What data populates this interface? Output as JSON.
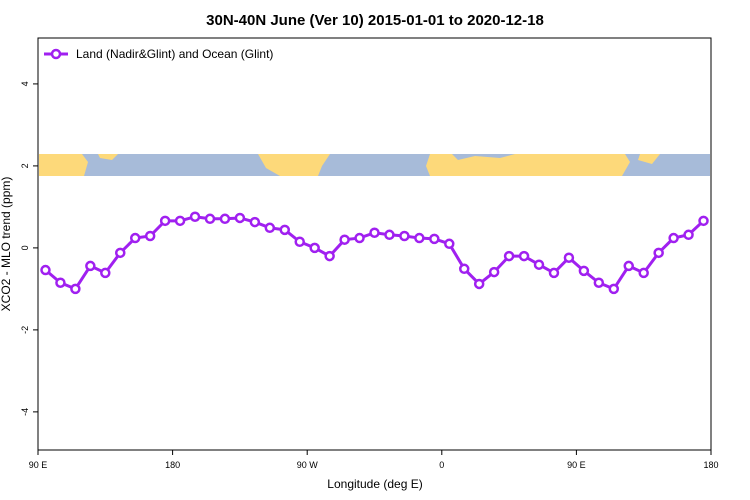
{
  "chart_data": {
    "type": "line",
    "title": "30N-40N June (Ver 10)   2015-01-01 to 2020-12-18",
    "x_label": "Longitude (deg E)",
    "y_label": "XCO2 - MLO trend (ppm)",
    "xlim": [
      90,
      540
    ],
    "ylim": [
      -4.93,
      5.12
    ],
    "xticks": [
      {
        "value": 90,
        "label": "90 E"
      },
      {
        "value": 180,
        "label": "180"
      },
      {
        "value": 270,
        "label": "90 W"
      },
      {
        "value": 360,
        "label": "0"
      },
      {
        "value": 450,
        "label": "90 E"
      },
      {
        "value": 540,
        "label": "180"
      }
    ],
    "yticks": [
      -4,
      -2,
      0,
      2,
      4
    ],
    "legend": "top-left",
    "x": [
      95,
      105,
      115,
      125,
      135,
      145,
      155,
      165,
      175,
      185,
      195,
      205,
      215,
      225,
      235,
      245,
      255,
      265,
      275,
      285,
      295,
      305,
      315,
      325,
      335,
      345,
      355,
      365,
      375,
      385,
      395,
      405,
      415,
      425,
      435,
      445,
      455,
      465,
      475,
      485,
      495,
      505,
      515,
      525,
      535
    ],
    "series": [
      {
        "name": "Land (Nadir&Glint) and Ocean (Glint)",
        "color": "#a020f0",
        "values": [
          -0.54,
          -0.85,
          -1.0,
          -0.44,
          -0.61,
          -0.12,
          0.24,
          0.29,
          0.66,
          0.66,
          0.76,
          0.71,
          0.71,
          0.73,
          0.63,
          0.49,
          0.44,
          0.15,
          0.0,
          -0.2,
          0.2,
          0.24,
          0.37,
          0.32,
          0.29,
          0.24,
          0.22,
          0.1,
          -0.51,
          -0.88,
          -0.59,
          -0.2,
          -0.2,
          -0.41,
          -0.61,
          -0.24,
          -0.56,
          -0.85,
          -1.0,
          -0.44,
          -0.61,
          -0.12,
          0.24,
          0.32,
          0.66
        ]
      }
    ]
  }
}
